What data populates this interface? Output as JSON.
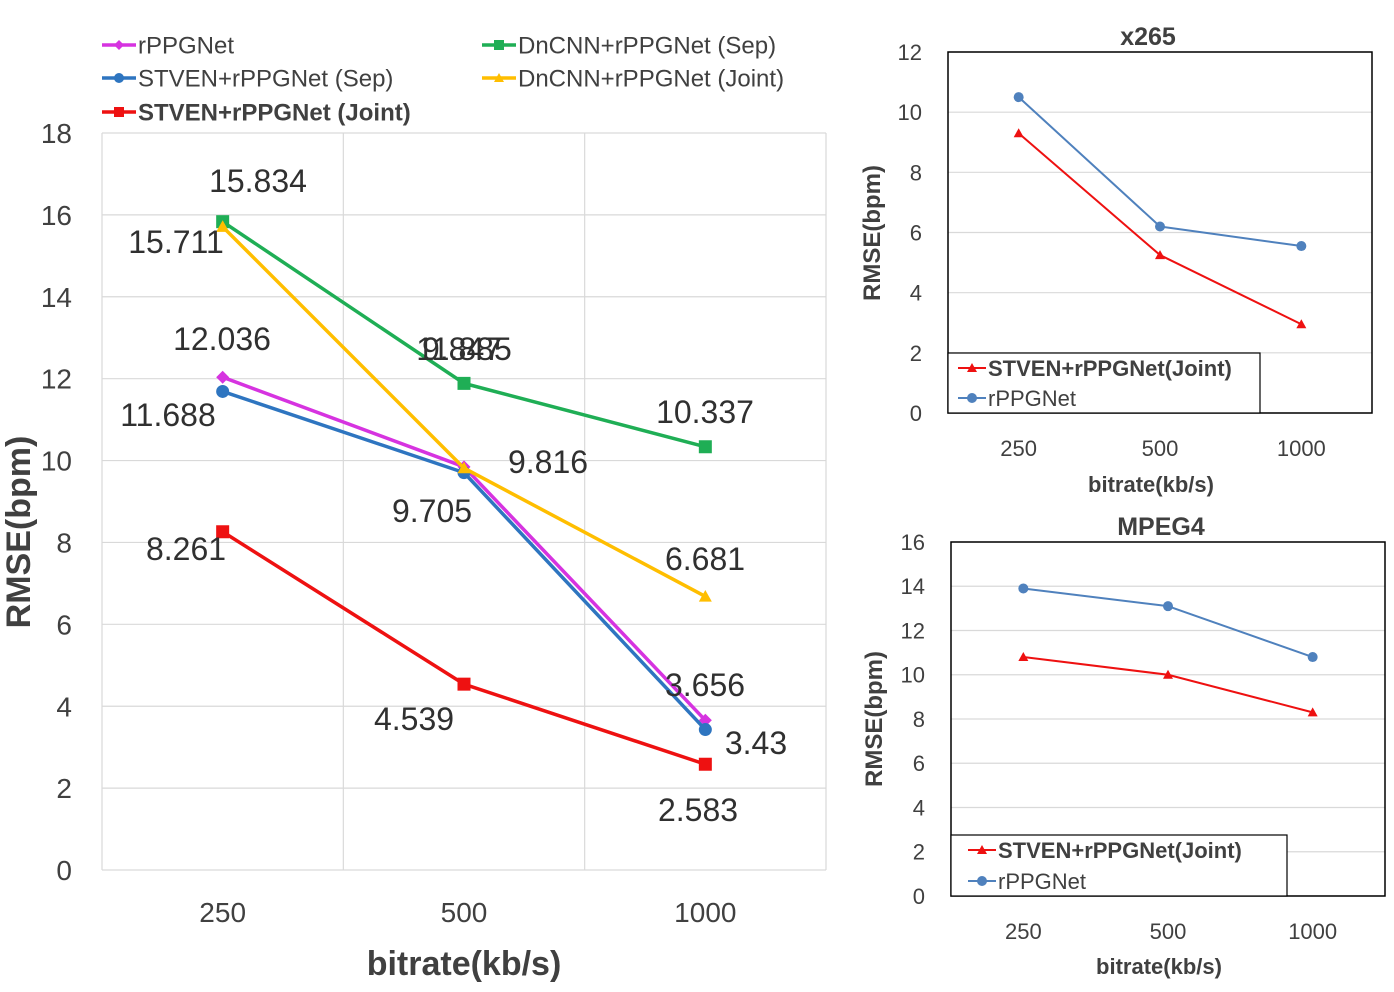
{
  "chart_data": [
    {
      "type": "line",
      "title": "",
      "xlabel": "bitrate(kb/s)",
      "ylabel": "RMSE(bpm)",
      "categories": [
        "250",
        "500",
        "1000"
      ],
      "ylim": [
        0,
        18
      ],
      "yticks": [
        "0",
        "2",
        "4",
        "6",
        "8",
        "10",
        "12",
        "14",
        "16",
        "18"
      ],
      "grid": true,
      "legend": "top",
      "series": [
        {
          "name": "rPPGNet",
          "color": "#d633e0",
          "marker": "diamond",
          "values": [
            12.036,
            9.847,
            3.656
          ],
          "labels": [
            "12.036",
            "9.847",
            "3.656"
          ]
        },
        {
          "name": "DnCNN+rPPGNet (Sep)",
          "color": "#1fae55",
          "marker": "square",
          "values": [
            15.834,
            11.885,
            10.337
          ],
          "labels": [
            "15.834",
            "11.885",
            "10.337"
          ]
        },
        {
          "name": "STVEN+rPPGNet (Sep)",
          "color": "#2e75c0",
          "marker": "circle",
          "values": [
            11.688,
            9.705,
            3.43
          ],
          "labels": [
            "11.688",
            "9.705",
            "3.43"
          ]
        },
        {
          "name": "DnCNN+rPPGNet (Joint)",
          "color": "#ffbe00",
          "marker": "triangle",
          "values": [
            15.711,
            9.816,
            6.681
          ],
          "labels": [
            "15.711",
            "9.816",
            "6.681"
          ]
        },
        {
          "name": "STVEN+rPPGNet (Joint)",
          "color": "#ee1111",
          "marker": "square",
          "bold": true,
          "values": [
            8.261,
            4.539,
            2.583
          ],
          "labels": [
            "8.261",
            "4.539",
            "2.583"
          ]
        }
      ]
    },
    {
      "type": "line",
      "title": "x265",
      "xlabel": "bitrate(kb/s)",
      "ylabel": "RMSE(bpm)",
      "categories": [
        "250",
        "500",
        "1000"
      ],
      "ylim": [
        0,
        12
      ],
      "yticks": [
        "0",
        "2",
        "4",
        "6",
        "8",
        "10",
        "12"
      ],
      "grid": true,
      "legend": "bottom-left",
      "series": [
        {
          "name": "STVEN+rPPGNet(Joint)",
          "color": "#ee1111",
          "marker": "triangle",
          "bold": true,
          "values": [
            9.3,
            5.25,
            2.95
          ]
        },
        {
          "name": "rPPGNet",
          "color": "#4f81bd",
          "marker": "circle",
          "values": [
            10.5,
            6.2,
            5.55
          ]
        }
      ]
    },
    {
      "type": "line",
      "title": "MPEG4",
      "xlabel": "bitrate(kb/s)",
      "ylabel": "RMSE(bpm)",
      "categories": [
        "250",
        "500",
        "1000"
      ],
      "ylim": [
        0,
        16
      ],
      "yticks": [
        "0",
        "2",
        "4",
        "6",
        "8",
        "10",
        "12",
        "14",
        "16"
      ],
      "grid": true,
      "legend": "bottom-left",
      "series": [
        {
          "name": "STVEN+rPPGNet(Joint)",
          "color": "#ee1111",
          "marker": "triangle",
          "bold": true,
          "values": [
            10.8,
            10.0,
            8.3
          ]
        },
        {
          "name": "rPPGNet",
          "color": "#4f81bd",
          "marker": "circle",
          "values": [
            13.9,
            13.1,
            10.8
          ]
        }
      ]
    }
  ]
}
